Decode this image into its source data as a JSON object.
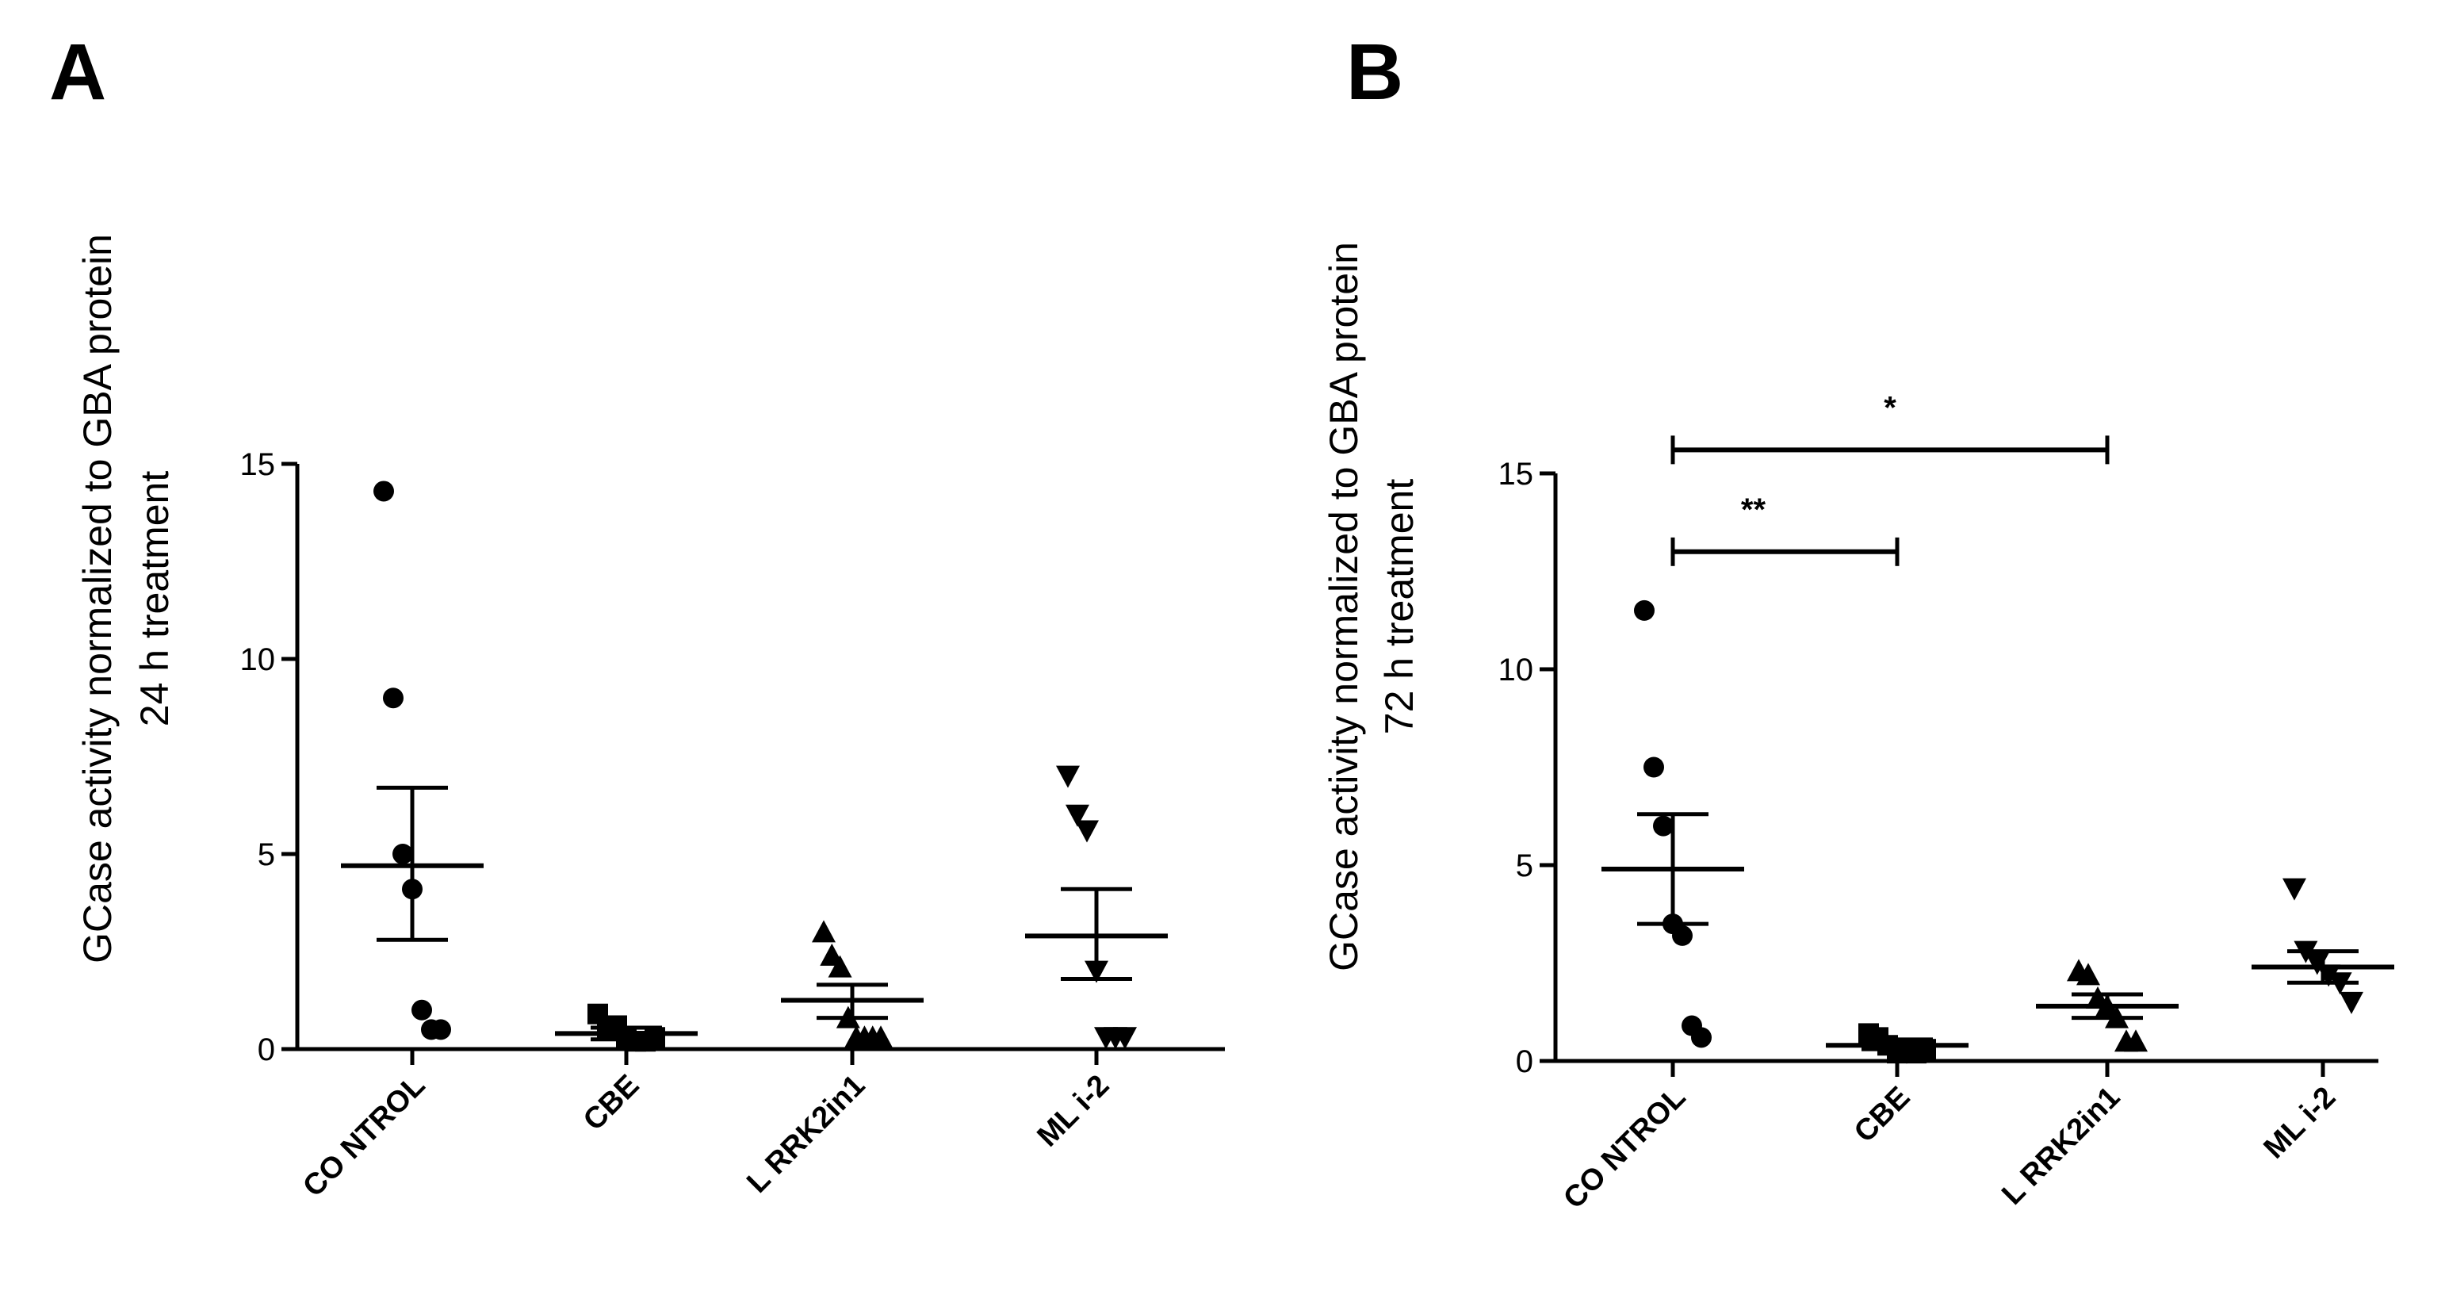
{
  "chart_data": [
    {
      "panel": "A",
      "type": "scatter",
      "ylabel_line1": "GCase activity normalized to GBA protein",
      "ylabel_line2": "24 h treatment",
      "xlabel": "",
      "ylim": [
        0,
        15
      ],
      "yticks": [
        0,
        5,
        10,
        15
      ],
      "categories": [
        "CO NTROL",
        "CBE",
        "L RRK2in1",
        "ML i-2"
      ],
      "markers": [
        "circle",
        "square",
        "triangle-up",
        "triangle-down"
      ],
      "groups": [
        {
          "points": [
            14.3,
            9.0,
            5.0,
            4.1,
            1.0,
            0.5,
            0.5
          ],
          "mean": 4.7,
          "sem_low": 2.8,
          "sem_high": 6.7
        },
        {
          "points": [
            0.9,
            0.5,
            0.6,
            0.3,
            0.2,
            0.2,
            0.3
          ],
          "mean": 0.4,
          "sem_low": 0.25,
          "sem_high": 0.55
        },
        {
          "points": [
            3.0,
            2.4,
            2.1,
            0.8,
            0.3,
            0.3,
            0.3,
            0.3
          ],
          "mean": 1.25,
          "sem_low": 0.8,
          "sem_high": 1.65
        },
        {
          "points": [
            7.0,
            6.0,
            5.6,
            2.0,
            0.3,
            0.3,
            0.3
          ],
          "mean": 2.9,
          "sem_low": 1.8,
          "sem_high": 4.1
        }
      ],
      "significance": []
    },
    {
      "panel": "B",
      "type": "scatter",
      "ylabel_line1": "GCase activity normalized to GBA protein",
      "ylabel_line2": "72 h treatment",
      "xlabel": "",
      "ylim": [
        0,
        15
      ],
      "yticks": [
        0,
        5,
        10,
        15
      ],
      "categories": [
        "CO NTROL",
        "CBE",
        "L RRK2in1",
        "ML i-2"
      ],
      "markers": [
        "circle",
        "square",
        "triangle-up",
        "triangle-down"
      ],
      "groups": [
        {
          "points": [
            11.5,
            7.5,
            6.0,
            3.5,
            3.2,
            0.9,
            0.6
          ],
          "mean": 4.9,
          "sem_low": 3.5,
          "sem_high": 6.3
        },
        {
          "points": [
            0.7,
            0.6,
            0.4,
            0.2,
            0.3,
            0.2,
            0.3
          ],
          "mean": 0.4,
          "sem_low": 0.3,
          "sem_high": 0.55
        },
        {
          "points": [
            2.3,
            2.2,
            1.6,
            1.4,
            1.1,
            0.5,
            0.5
          ],
          "mean": 1.4,
          "sem_low": 1.1,
          "sem_high": 1.7
        },
        {
          "points": [
            4.4,
            2.8,
            2.5,
            2.2,
            2.0,
            1.5
          ],
          "mean": 2.4,
          "sem_low": 2.0,
          "sem_high": 2.8
        }
      ],
      "significance": [
        {
          "label": "**",
          "from": 0,
          "to": 1,
          "y": 13.0
        },
        {
          "label": "*",
          "from": 0,
          "to": 2,
          "y": 15.6
        }
      ]
    }
  ]
}
